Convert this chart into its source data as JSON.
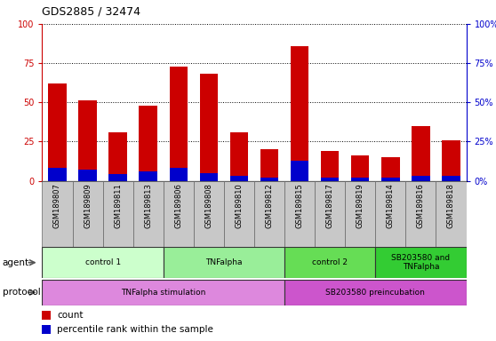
{
  "title": "GDS2885 / 32474",
  "samples": [
    "GSM189807",
    "GSM189809",
    "GSM189811",
    "GSM189813",
    "GSM189806",
    "GSM189808",
    "GSM189810",
    "GSM189812",
    "GSM189815",
    "GSM189817",
    "GSM189819",
    "GSM189814",
    "GSM189816",
    "GSM189818"
  ],
  "count_values": [
    62,
    51,
    31,
    48,
    73,
    68,
    31,
    20,
    86,
    19,
    16,
    15,
    35,
    26
  ],
  "percentile_values": [
    8,
    7,
    4,
    6,
    8,
    5,
    3,
    2,
    13,
    2,
    2,
    2,
    3,
    3
  ],
  "count_color": "#CC0000",
  "percentile_color": "#0000CC",
  "ylim": [
    0,
    100
  ],
  "yticks": [
    0,
    25,
    50,
    75,
    100
  ],
  "ytick_labels_left": [
    "0",
    "25",
    "50",
    "75",
    "100"
  ],
  "ytick_labels_right": [
    "0%",
    "25%",
    "50%",
    "75%",
    "100%"
  ],
  "agent_groups": [
    {
      "label": "control 1",
      "start": 0,
      "end": 4,
      "color": "#ccffcc"
    },
    {
      "label": "TNFalpha",
      "start": 4,
      "end": 8,
      "color": "#99ee99"
    },
    {
      "label": "control 2",
      "start": 8,
      "end": 11,
      "color": "#66dd55"
    },
    {
      "label": "SB203580 and\nTNFalpha",
      "start": 11,
      "end": 14,
      "color": "#33cc33"
    }
  ],
  "protocol_groups": [
    {
      "label": "TNFalpha stimulation",
      "start": 0,
      "end": 8,
      "color": "#dd88dd"
    },
    {
      "label": "SB203580 preincubation",
      "start": 8,
      "end": 14,
      "color": "#cc55cc"
    }
  ],
  "bar_width": 0.6,
  "background_color": "#ffffff",
  "fig_width": 5.58,
  "fig_height": 3.84,
  "dpi": 100
}
